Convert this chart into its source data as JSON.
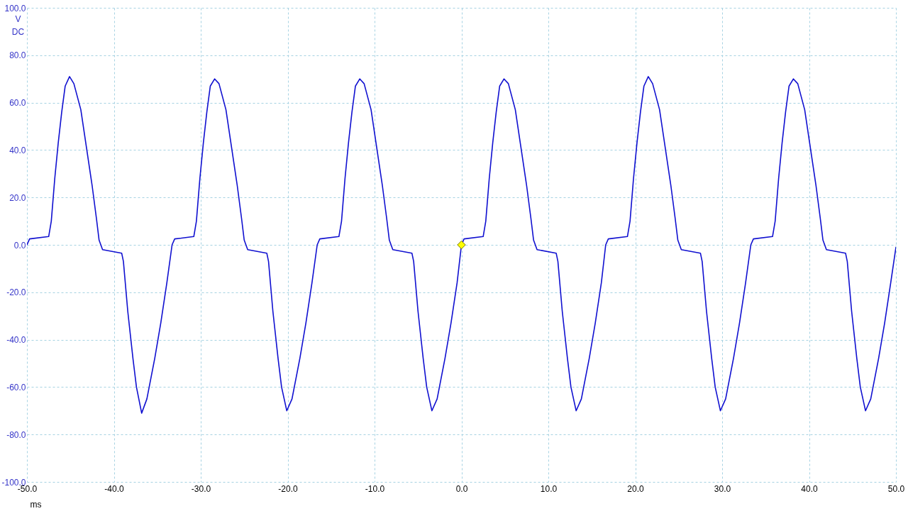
{
  "chart_data": {
    "type": "line",
    "xlabel": "ms",
    "ylabel": "V DC",
    "xlim": [
      -50,
      50
    ],
    "ylim": [
      -100,
      100
    ],
    "xticks": [
      {
        "value": -50,
        "label": "-50.0"
      },
      {
        "value": -40,
        "label": "-40.0"
      },
      {
        "value": -30,
        "label": "-30.0"
      },
      {
        "value": -20,
        "label": "-20.0"
      },
      {
        "value": -10,
        "label": "-10.0"
      },
      {
        "value": 0,
        "label": "0.0"
      },
      {
        "value": 10,
        "label": "10.0"
      },
      {
        "value": 20,
        "label": "20.0"
      },
      {
        "value": 30,
        "label": "30.0"
      },
      {
        "value": 40,
        "label": "40.0"
      },
      {
        "value": 50,
        "label": "50.0"
      }
    ],
    "yticks": [
      {
        "value": -100,
        "label": "-100.0"
      },
      {
        "value": -80,
        "label": "-80.0"
      },
      {
        "value": -60,
        "label": "-60.0"
      },
      {
        "value": -40,
        "label": "-40.0"
      },
      {
        "value": -20,
        "label": "-20.0"
      },
      {
        "value": 0,
        "label": "0.0"
      },
      {
        "value": 20,
        "label": "20.0"
      },
      {
        "value": 40,
        "label": "40.0"
      },
      {
        "value": 60,
        "label": "60.0"
      },
      {
        "value": 80,
        "label": "80.0"
      },
      {
        "value": 100,
        "label": "100.0"
      }
    ],
    "grid": true,
    "series": [
      {
        "color": "#1010d0",
        "line_style": "solid",
        "x": [
          -50,
          -49.7,
          -47.5,
          -47.2,
          -46.8,
          -46.4,
          -46.0,
          -45.6,
          -45.1,
          -44.6,
          -43.8,
          -42.5,
          -42.0,
          -41.7,
          -41.3,
          -39.1,
          -38.9,
          -38.4,
          -37.8,
          -37.4,
          -36.8,
          -36.2,
          -35.3,
          -34.6,
          -33.9,
          -33.3,
          -33.0,
          -30.8,
          -30.5,
          -30.1,
          -29.7,
          -29.3,
          -28.9,
          -28.4,
          -27.9,
          -27.1,
          -25.8,
          -25.3,
          -25.0,
          -24.6,
          -22.4,
          -22.2,
          -21.7,
          -21.1,
          -20.7,
          -20.1,
          -19.5,
          -18.6,
          -17.9,
          -17.2,
          -16.6,
          -16.3,
          -14.1,
          -13.8,
          -13.4,
          -13.0,
          -12.6,
          -12.2,
          -11.7,
          -11.2,
          -10.4,
          -9.1,
          -8.6,
          -8.3,
          -7.9,
          -5.7,
          -5.5,
          -5.0,
          -4.4,
          -4.0,
          -3.4,
          -2.8,
          -1.9,
          -1.2,
          -0.5,
          0,
          0.3,
          2.5,
          2.8,
          3.2,
          3.6,
          4.0,
          4.4,
          4.9,
          5.4,
          6.2,
          7.5,
          8.0,
          8.3,
          8.7,
          10.9,
          11.1,
          11.6,
          12.2,
          12.6,
          13.2,
          13.8,
          14.7,
          15.4,
          16.1,
          16.6,
          16.9,
          19.1,
          19.4,
          19.8,
          20.2,
          20.6,
          21.0,
          21.5,
          22.0,
          22.8,
          24.1,
          24.6,
          24.9,
          25.3,
          27.5,
          27.7,
          28.2,
          28.8,
          29.2,
          29.8,
          30.4,
          31.3,
          32.0,
          32.7,
          33.3,
          33.6,
          35.8,
          36.1,
          36.5,
          36.9,
          37.3,
          37.7,
          38.2,
          38.7,
          39.5,
          40.8,
          41.3,
          41.6,
          42.0,
          44.2,
          44.4,
          44.9,
          45.5,
          45.9,
          46.5,
          47.1,
          48.0,
          48.7,
          49.4,
          50
        ],
        "values": [
          0,
          2.5,
          3.5,
          10,
          28,
          43,
          56,
          67,
          71,
          68,
          57,
          25,
          11,
          2,
          -2,
          -3.5,
          -7,
          -28,
          -48,
          -60,
          -71,
          -65,
          -48,
          -33,
          -16,
          0,
          2.5,
          3.5,
          10,
          28,
          43,
          56,
          67,
          70,
          68,
          57,
          25,
          11,
          2,
          -2,
          -3.5,
          -7,
          -28,
          -48,
          -60,
          -70,
          -65,
          -48,
          -33,
          -16,
          0,
          2.5,
          3.5,
          10,
          28,
          43,
          56,
          67,
          70,
          68,
          57,
          25,
          11,
          2,
          -2,
          -3.5,
          -7,
          -28,
          -48,
          -60,
          -70,
          -65,
          -48,
          -33,
          -16,
          0,
          2.5,
          3.5,
          10,
          28,
          43,
          56,
          67,
          70,
          68,
          57,
          25,
          11,
          2,
          -2,
          -3.5,
          -7,
          -28,
          -48,
          -60,
          -70,
          -65,
          -48,
          -33,
          -16,
          0,
          2.5,
          3.5,
          10,
          28,
          43,
          56,
          67,
          71,
          68,
          57,
          25,
          11,
          2,
          -2,
          -3.5,
          -7,
          -28,
          -48,
          -60,
          -70,
          -65,
          -48,
          -33,
          -16,
          0,
          2.5,
          3.5,
          10,
          28,
          43,
          56,
          67,
          70,
          68,
          57,
          25,
          11,
          2,
          -2,
          -3.5,
          -7,
          -28,
          -48,
          -60,
          -70,
          -65,
          -48,
          -33,
          -16,
          -1
        ]
      },
      {
        "type": "scatter",
        "marker": "diamond",
        "color": "#ffff00",
        "x": [
          0
        ],
        "values": [
          0
        ]
      }
    ]
  }
}
